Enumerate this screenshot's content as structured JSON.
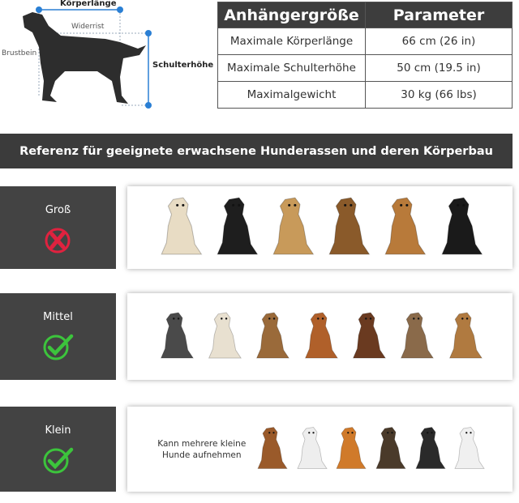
{
  "diagram": {
    "body_length": "Körperlänge",
    "withers": "Widerrist",
    "brisket": "Brustbein",
    "shoulder_height": "Schulterhöhe",
    "accent": "#2a7fd4"
  },
  "table": {
    "headers": [
      "Anhängergröße",
      "Parameter"
    ],
    "rows": [
      [
        "Maximale Körperlänge",
        "66 cm (26 in)"
      ],
      [
        "Maximale Schulterhöhe",
        "50 cm (19.5 in)"
      ],
      [
        "Maximalgewicht",
        "30 kg (66 lbs)"
      ]
    ]
  },
  "banner": "Referenz für geeignete erwachsene Hunderassen und deren Körperbau",
  "sizes": [
    {
      "label": "Groß",
      "status": "not-suitable",
      "icon": "x-circle-icon",
      "color": "#e0223f",
      "dogs": [
        "#e8dcc4",
        "#1e1e1e",
        "#c89a5a",
        "#8a5a2a",
        "#b87a3a",
        "#1a1a1a"
      ]
    },
    {
      "label": "Mittel",
      "status": "suitable",
      "icon": "check-circle-icon",
      "color": "#3cc43c",
      "dogs": [
        "#4a4a4a",
        "#e8e0d0",
        "#9a6a3a",
        "#b0602a",
        "#6a3a20",
        "#8a6a4a",
        "#b07a40"
      ]
    },
    {
      "label": "Klein",
      "status": "suitable",
      "icon": "check-circle-icon",
      "color": "#3cc43c",
      "note": "Kann mehrere kleine Hunde aufnehmen",
      "dogs": [
        "#9a5a2a",
        "#eeeeee",
        "#d07a2a",
        "#4a3a2a",
        "#2a2a2a",
        "#f0f0f0"
      ]
    }
  ]
}
